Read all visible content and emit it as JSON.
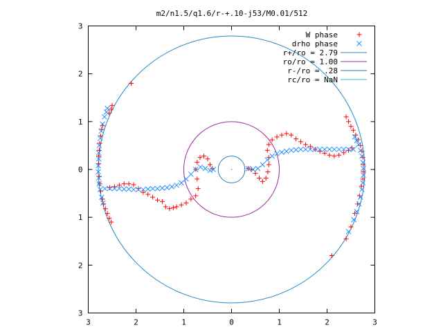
{
  "chart_data": {
    "type": "scatter",
    "title": "m2/n1.5/q1.6/r-+.10-j53/M0.01/512",
    "xlim": [
      -3,
      3
    ],
    "ylim": [
      -3,
      3
    ],
    "x_ticks": [
      {
        "value": -3,
        "label": "3"
      },
      {
        "value": -2,
        "label": "2"
      },
      {
        "value": -1,
        "label": "1"
      },
      {
        "value": 0,
        "label": "0"
      },
      {
        "value": 1,
        "label": "1"
      },
      {
        "value": 2,
        "label": "2"
      },
      {
        "value": 3,
        "label": "3"
      }
    ],
    "y_ticks": [
      {
        "value": 3,
        "label": "3"
      },
      {
        "value": 2,
        "label": "2"
      },
      {
        "value": 1,
        "label": "1"
      },
      {
        "value": 0,
        "label": "0"
      },
      {
        "value": -1,
        "label": "1"
      },
      {
        "value": -2,
        "label": "2"
      },
      {
        "value": -3,
        "label": "3"
      }
    ],
    "grid": false,
    "legend_position": "top-right",
    "circles": [
      {
        "name": "r+/ro = 2.79",
        "radius": 2.79,
        "color": "#1f86c8"
      },
      {
        "name": "ro/ro = 1.00",
        "radius": 1.0,
        "color": "#9a2ba0"
      },
      {
        "name": "r-/ro = .28",
        "radius": 0.28,
        "color": "#1f7fbf"
      },
      {
        "name": "rc/ro = NaN",
        "radius": null,
        "color": "#33bbcc"
      }
    ],
    "series": [
      {
        "name": "W phase",
        "marker": "plus",
        "color": "#ff0000",
        "points": [
          [
            -2.1,
            1.8
          ],
          [
            -2.5,
            1.34
          ],
          [
            -2.52,
            1.26
          ],
          [
            -2.56,
            1.18
          ],
          [
            -2.7,
            0.92
          ],
          [
            -2.72,
            0.84
          ],
          [
            -2.74,
            0.7
          ],
          [
            -2.76,
            0.55
          ],
          [
            -2.77,
            0.4
          ],
          [
            -2.78,
            0.28
          ],
          [
            -2.78,
            0.12
          ],
          [
            -2.77,
            -0.15
          ],
          [
            -2.76,
            -0.3
          ],
          [
            -2.74,
            -0.45
          ],
          [
            -2.7,
            -0.62
          ],
          [
            -2.68,
            -0.72
          ],
          [
            -2.64,
            -0.82
          ],
          [
            -2.6,
            -0.92
          ],
          [
            -2.56,
            -1.02
          ],
          [
            -2.52,
            -1.1
          ],
          [
            -2.55,
            -0.38
          ],
          [
            -2.45,
            -0.36
          ],
          [
            -2.35,
            -0.33
          ],
          [
            -2.25,
            -0.3
          ],
          [
            -2.15,
            -0.3
          ],
          [
            -2.05,
            -0.32
          ],
          [
            -1.95,
            -0.4
          ],
          [
            -1.85,
            -0.48
          ],
          [
            -1.75,
            -0.52
          ],
          [
            -1.65,
            -0.58
          ],
          [
            -1.55,
            -0.64
          ],
          [
            -1.45,
            -0.67
          ],
          [
            -1.38,
            -0.78
          ],
          [
            -1.3,
            -0.82
          ],
          [
            -1.22,
            -0.8
          ],
          [
            -1.15,
            -0.78
          ],
          [
            -1.05,
            -0.74
          ],
          [
            -0.95,
            -0.7
          ],
          [
            -0.85,
            -0.62
          ],
          [
            -0.75,
            -0.55
          ],
          [
            -0.7,
            -0.4
          ],
          [
            -0.72,
            -0.2
          ],
          [
            -0.75,
            0.0
          ],
          [
            -0.72,
            0.15
          ],
          [
            -0.66,
            0.25
          ],
          [
            -0.58,
            0.28
          ],
          [
            -0.5,
            0.22
          ],
          [
            -0.45,
            0.1
          ],
          [
            -0.4,
            0.02
          ],
          [
            0.35,
            0.02
          ],
          [
            0.42,
            0.0
          ],
          [
            0.5,
            -0.08
          ],
          [
            0.58,
            -0.18
          ],
          [
            0.65,
            -0.25
          ],
          [
            0.72,
            -0.18
          ],
          [
            0.76,
            -0.05
          ],
          [
            0.78,
            0.1
          ],
          [
            0.78,
            0.25
          ],
          [
            0.75,
            0.4
          ],
          [
            0.78,
            0.52
          ],
          [
            0.85,
            0.62
          ],
          [
            0.95,
            0.68
          ],
          [
            1.05,
            0.72
          ],
          [
            1.15,
            0.75
          ],
          [
            1.25,
            0.72
          ],
          [
            1.35,
            0.64
          ],
          [
            1.45,
            0.58
          ],
          [
            1.55,
            0.52
          ],
          [
            1.65,
            0.48
          ],
          [
            1.75,
            0.42
          ],
          [
            1.85,
            0.38
          ],
          [
            1.95,
            0.34
          ],
          [
            2.05,
            0.3
          ],
          [
            2.15,
            0.28
          ],
          [
            2.25,
            0.3
          ],
          [
            2.35,
            0.35
          ],
          [
            2.45,
            0.4
          ],
          [
            2.52,
            0.45
          ],
          [
            2.4,
            1.1
          ],
          [
            2.45,
            1.0
          ],
          [
            2.5,
            0.9
          ],
          [
            2.55,
            0.82
          ],
          [
            2.6,
            0.72
          ],
          [
            2.65,
            0.62
          ],
          [
            2.7,
            0.5
          ],
          [
            2.73,
            0.38
          ],
          [
            2.75,
            0.25
          ],
          [
            2.76,
            0.1
          ],
          [
            2.76,
            -0.05
          ],
          [
            2.75,
            -0.2
          ],
          [
            2.72,
            -0.35
          ],
          [
            2.68,
            -0.55
          ],
          [
            2.64,
            -0.72
          ],
          [
            2.58,
            -0.92
          ],
          [
            2.5,
            -1.2
          ],
          [
            2.4,
            -1.45
          ],
          [
            2.1,
            -1.8
          ]
        ]
      },
      {
        "name": "drho phase",
        "marker": "cross",
        "color": "#1e90ff",
        "points": [
          [
            -2.6,
            1.28
          ],
          [
            -2.62,
            1.2
          ],
          [
            -2.66,
            1.1
          ],
          [
            -2.7,
            0.95
          ],
          [
            -2.73,
            0.8
          ],
          [
            -2.75,
            0.65
          ],
          [
            -2.77,
            0.5
          ],
          [
            -2.78,
            0.35
          ],
          [
            -2.78,
            0.22
          ],
          [
            -2.79,
            0.08
          ],
          [
            -2.79,
            -0.05
          ],
          [
            -2.78,
            -0.18
          ],
          [
            -2.77,
            -0.3
          ],
          [
            -2.75,
            -0.42
          ],
          [
            -2.72,
            -0.58
          ],
          [
            -2.69,
            -0.7
          ],
          [
            -2.65,
            -0.4
          ],
          [
            -2.55,
            -0.4
          ],
          [
            -2.45,
            -0.4
          ],
          [
            -2.35,
            -0.4
          ],
          [
            -2.25,
            -0.41
          ],
          [
            -2.15,
            -0.41
          ],
          [
            -2.05,
            -0.42
          ],
          [
            -1.95,
            -0.42
          ],
          [
            -1.85,
            -0.42
          ],
          [
            -1.75,
            -0.41
          ],
          [
            -1.65,
            -0.4
          ],
          [
            -1.55,
            -0.4
          ],
          [
            -1.45,
            -0.39
          ],
          [
            -1.35,
            -0.38
          ],
          [
            -1.25,
            -0.36
          ],
          [
            -1.15,
            -0.33
          ],
          [
            -1.05,
            -0.28
          ],
          [
            -0.95,
            -0.2
          ],
          [
            -0.85,
            -0.1
          ],
          [
            -0.75,
            0.0
          ],
          [
            -0.65,
            0.05
          ],
          [
            -0.55,
            0.02
          ],
          [
            -0.45,
            -0.02
          ],
          [
            -0.38,
            0.0
          ],
          [
            0.35,
            0.02
          ],
          [
            0.45,
            0.0
          ],
          [
            0.55,
            0.02
          ],
          [
            0.65,
            0.1
          ],
          [
            0.75,
            0.2
          ],
          [
            0.85,
            0.28
          ],
          [
            0.95,
            0.33
          ],
          [
            1.05,
            0.36
          ],
          [
            1.15,
            0.38
          ],
          [
            1.25,
            0.4
          ],
          [
            1.35,
            0.41
          ],
          [
            1.45,
            0.42
          ],
          [
            1.55,
            0.42
          ],
          [
            1.65,
            0.42
          ],
          [
            1.75,
            0.42
          ],
          [
            1.85,
            0.42
          ],
          [
            1.95,
            0.42
          ],
          [
            2.05,
            0.42
          ],
          [
            2.15,
            0.42
          ],
          [
            2.25,
            0.42
          ],
          [
            2.35,
            0.42
          ],
          [
            2.45,
            0.42
          ],
          [
            2.55,
            0.42
          ],
          [
            2.58,
            0.68
          ],
          [
            2.62,
            0.6
          ],
          [
            2.66,
            0.52
          ],
          [
            2.7,
            0.4
          ],
          [
            2.73,
            0.28
          ],
          [
            2.75,
            0.15
          ],
          [
            2.76,
            0.02
          ],
          [
            2.76,
            -0.12
          ],
          [
            2.75,
            -0.28
          ],
          [
            2.73,
            -0.42
          ],
          [
            2.7,
            -0.58
          ],
          [
            2.67,
            -0.72
          ],
          [
            2.62,
            -0.88
          ],
          [
            2.56,
            -1.05
          ],
          [
            2.45,
            -1.3
          ]
        ]
      }
    ]
  }
}
